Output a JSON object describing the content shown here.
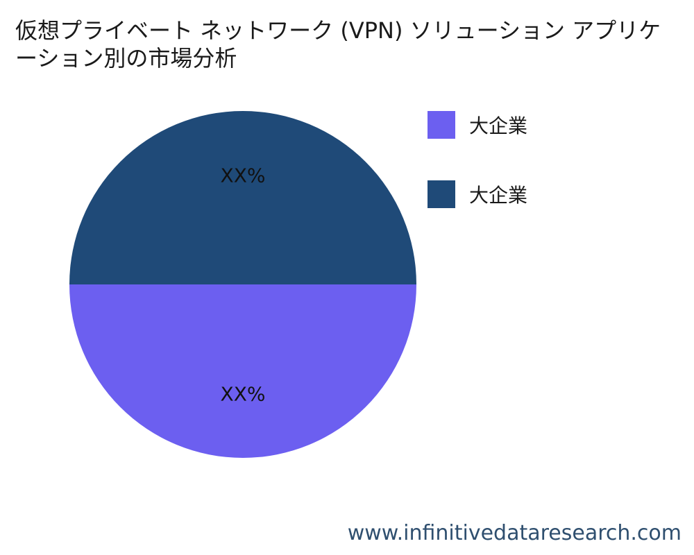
{
  "chart_data": {
    "type": "pie",
    "title": "仮想プライベート ネットワーク (VPN) ソリューション アプリケーション別の市場分析",
    "slices": [
      {
        "label": "大企業",
        "value": 50,
        "display": "XX%",
        "color": "#6c5ff0"
      },
      {
        "label": "大企業",
        "value": 50,
        "display": "XX%",
        "color": "#1f4a78"
      }
    ],
    "legend_position": "right"
  },
  "watermark": "www.infinitivedataresearch.com"
}
